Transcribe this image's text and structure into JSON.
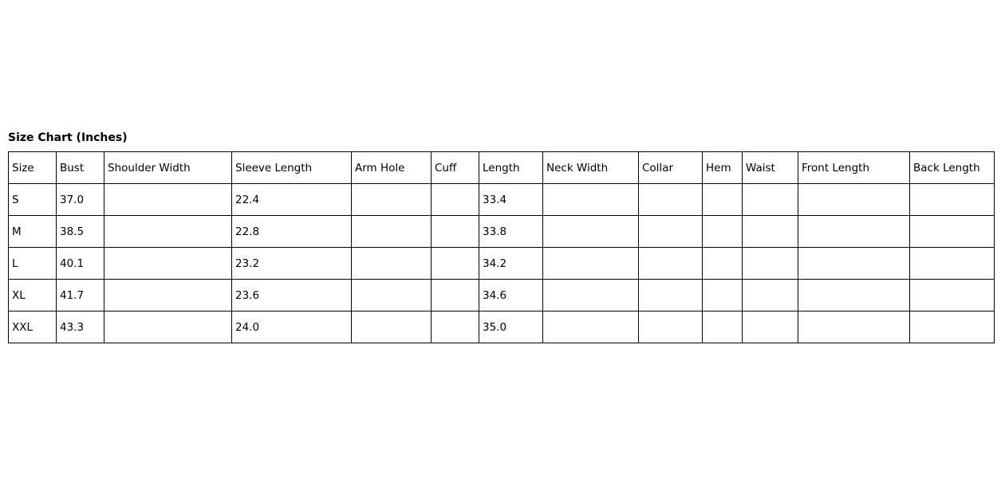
{
  "title": "Size Chart (Inches)",
  "table": {
    "headers": [
      "Size",
      "Bust",
      "Shoulder Width",
      "Sleeve Length",
      "Arm Hole",
      "Cuff",
      "Length",
      "Neck Width",
      "Collar",
      "Hem",
      "Waist",
      "Front Length",
      "Back Length"
    ],
    "rows": [
      [
        "S",
        "37.0",
        "",
        "22.4",
        "",
        "",
        "33.4",
        "",
        "",
        "",
        "",
        "",
        ""
      ],
      [
        "M",
        "38.5",
        "",
        "22.8",
        "",
        "",
        "33.8",
        "",
        "",
        "",
        "",
        "",
        ""
      ],
      [
        "L",
        "40.1",
        "",
        "23.2",
        "",
        "",
        "34.2",
        "",
        "",
        "",
        "",
        "",
        ""
      ],
      [
        "XL",
        "41.7",
        "",
        "23.6",
        "",
        "",
        "34.6",
        "",
        "",
        "",
        "",
        "",
        ""
      ],
      [
        "XXL",
        "43.3",
        "",
        "24.0",
        "",
        "",
        "35.0",
        "",
        "",
        "",
        "",
        "",
        ""
      ]
    ]
  }
}
